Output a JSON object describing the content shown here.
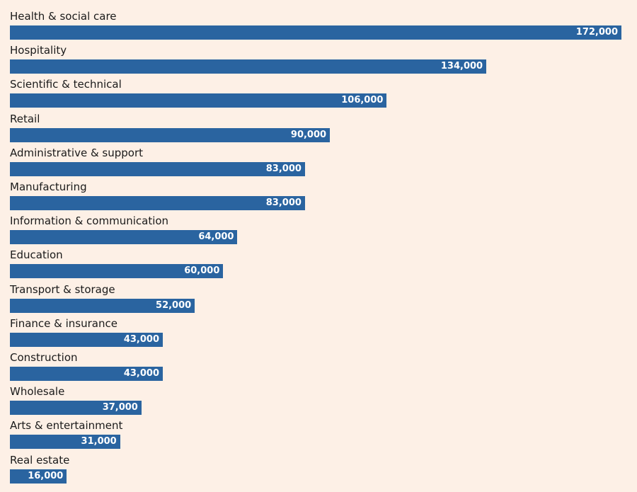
{
  "chart_data": {
    "type": "bar",
    "orientation": "horizontal",
    "title": "",
    "xlabel": "",
    "ylabel": "",
    "grid": false,
    "xlim": [
      0,
      172000
    ],
    "categories": [
      "Health & social care",
      "Hospitality",
      "Scientific & technical",
      "Retail",
      "Administrative & support",
      "Manufacturing",
      "Information & communication",
      "Education",
      "Transport & storage",
      "Finance & insurance",
      "Construction",
      "Wholesale",
      "Arts & entertainment",
      "Real estate"
    ],
    "values": [
      172000,
      134000,
      106000,
      90000,
      83000,
      83000,
      64000,
      60000,
      52000,
      43000,
      43000,
      37000,
      31000,
      16000
    ],
    "value_labels": [
      "172,000",
      "134,000",
      "106,000",
      "90,000",
      "83,000",
      "83,000",
      "64,000",
      "60,000",
      "52,000",
      "43,000",
      "43,000",
      "37,000",
      "31,000",
      "16,000"
    ],
    "bar_color": "#2a64a0",
    "background_color": "#fdf0e6"
  }
}
